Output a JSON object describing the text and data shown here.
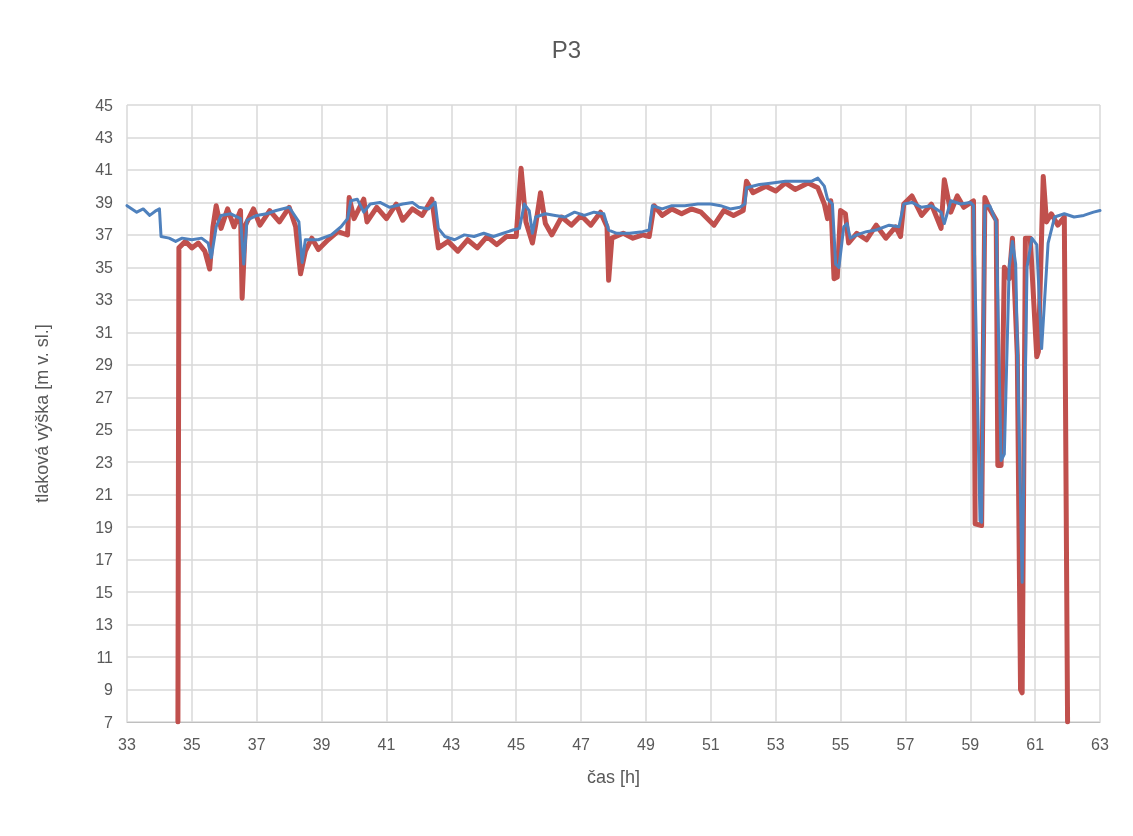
{
  "chart_data": {
    "type": "line",
    "title": "P3",
    "xlabel": "čas [h]",
    "ylabel": "tlaková výška [m v. sl.]",
    "xlim": [
      33,
      63
    ],
    "xticks": [
      33,
      35,
      37,
      39,
      41,
      43,
      45,
      47,
      49,
      51,
      53,
      55,
      57,
      59,
      61,
      63
    ],
    "ylim": [
      7,
      45
    ],
    "yticks": [
      7,
      9,
      11,
      13,
      15,
      17,
      19,
      21,
      23,
      25,
      27,
      29,
      31,
      33,
      35,
      37,
      39,
      41,
      43,
      45
    ],
    "grid": true,
    "marker": "none",
    "line_style": "solid",
    "series": [
      {
        "color": "#c0504d",
        "x": [
          34.57,
          34.6,
          34.8,
          35.0,
          35.2,
          35.4,
          35.55,
          35.65,
          35.75,
          35.9,
          36.1,
          36.3,
          36.5,
          36.55,
          36.65,
          36.9,
          37.1,
          37.4,
          37.7,
          38.0,
          38.2,
          38.35,
          38.5,
          38.7,
          38.9,
          39.2,
          39.5,
          39.8,
          39.85,
          40.0,
          40.3,
          40.4,
          40.7,
          41.0,
          41.3,
          41.5,
          41.8,
          42.1,
          42.4,
          42.6,
          42.9,
          43.2,
          43.5,
          43.8,
          44.1,
          44.4,
          44.7,
          45.0,
          45.15,
          45.3,
          45.5,
          45.6,
          45.75,
          45.9,
          46.1,
          46.4,
          46.7,
          47.0,
          47.3,
          47.6,
          47.8,
          47.85,
          47.95,
          48.3,
          48.6,
          48.9,
          49.1,
          49.25,
          49.5,
          49.8,
          50.1,
          50.4,
          50.7,
          50.9,
          51.1,
          51.4,
          51.7,
          52.0,
          52.1,
          52.3,
          52.7,
          53.0,
          53.3,
          53.6,
          54.0,
          54.3,
          54.5,
          54.6,
          54.7,
          54.8,
          54.9,
          55.0,
          55.15,
          55.25,
          55.5,
          55.8,
          56.1,
          56.4,
          56.7,
          56.85,
          56.95,
          57.2,
          57.5,
          57.8,
          58.1,
          58.2,
          58.4,
          58.6,
          58.8,
          59.1,
          59.15,
          59.35,
          59.45,
          59.6,
          59.8,
          59.85,
          59.95,
          60.05,
          60.2,
          60.3,
          60.45,
          60.55,
          60.6,
          60.7,
          60.85,
          61.05,
          61.1,
          61.25,
          61.35,
          61.5,
          61.7,
          61.9,
          62.0
        ],
        "values": [
          7,
          36.2,
          36.6,
          36.2,
          36.5,
          36.0,
          34.9,
          37.5,
          38.8,
          37.4,
          38.6,
          37.5,
          38.5,
          33.1,
          37.6,
          38.6,
          37.6,
          38.5,
          37.8,
          38.7,
          37.5,
          34.6,
          36.0,
          36.8,
          36.1,
          36.7,
          37.2,
          37.0,
          39.3,
          38.0,
          39.2,
          37.8,
          38.7,
          38.0,
          38.9,
          37.9,
          38.6,
          38.2,
          39.2,
          36.2,
          36.6,
          36.0,
          36.7,
          36.2,
          36.9,
          36.4,
          36.9,
          36.9,
          41.1,
          37.8,
          36.5,
          37.6,
          39.6,
          37.7,
          37.0,
          38.1,
          37.6,
          38.2,
          37.6,
          38.4,
          37.5,
          34.2,
          36.8,
          37.1,
          36.8,
          37.0,
          36.9,
          38.8,
          38.2,
          38.6,
          38.3,
          38.6,
          38.4,
          38.0,
          37.6,
          38.5,
          38.2,
          38.5,
          40.3,
          39.6,
          40.0,
          39.7,
          40.2,
          39.8,
          40.2,
          39.9,
          38.9,
          38.0,
          39.1,
          34.3,
          34.4,
          38.5,
          38.3,
          36.5,
          37.1,
          36.7,
          37.6,
          36.8,
          37.5,
          36.9,
          38.9,
          39.4,
          38.2,
          38.9,
          37.4,
          40.4,
          38.4,
          39.4,
          38.7,
          39.1,
          19.2,
          19.1,
          39.3,
          38.6,
          37.9,
          22.8,
          22.8,
          35.0,
          34.3,
          36.8,
          29.6,
          9.0,
          8.8,
          36.8,
          36.8,
          29.5,
          29.8,
          40.6,
          37.8,
          38.3,
          37.6,
          38.1,
          7
        ]
      },
      {
        "color": "#4f81bd",
        "x": [
          33.0,
          33.3,
          33.5,
          33.7,
          33.9,
          34.0,
          34.05,
          34.3,
          34.5,
          34.7,
          35.0,
          35.3,
          35.5,
          35.6,
          35.75,
          35.9,
          36.2,
          36.5,
          36.6,
          36.7,
          37.0,
          37.3,
          37.6,
          38.0,
          38.3,
          38.4,
          38.5,
          38.9,
          39.3,
          39.6,
          39.8,
          39.9,
          40.1,
          40.3,
          40.5,
          40.8,
          41.1,
          41.5,
          41.8,
          42.0,
          42.3,
          42.5,
          42.6,
          42.8,
          43.1,
          43.4,
          43.7,
          44.0,
          44.3,
          44.6,
          44.9,
          45.1,
          45.25,
          45.4,
          45.5,
          45.6,
          45.9,
          46.2,
          46.5,
          46.8,
          47.1,
          47.4,
          47.7,
          47.85,
          48.1,
          48.5,
          48.9,
          49.1,
          49.2,
          49.5,
          49.8,
          50.2,
          50.6,
          51.0,
          51.3,
          51.6,
          51.9,
          52.05,
          52.1,
          52.5,
          52.9,
          53.3,
          53.7,
          54.1,
          54.3,
          54.5,
          54.6,
          54.75,
          54.85,
          54.95,
          55.1,
          55.2,
          55.3,
          55.5,
          55.8,
          56.1,
          56.5,
          56.8,
          56.95,
          57.2,
          57.5,
          57.8,
          58.1,
          58.2,
          58.4,
          58.7,
          59.0,
          59.1,
          59.3,
          59.35,
          59.45,
          59.6,
          59.8,
          59.95,
          60.05,
          60.2,
          60.3,
          60.4,
          60.6,
          60.75,
          60.9,
          61.05,
          61.2,
          61.4,
          61.6,
          61.9,
          62.2,
          62.5,
          62.8,
          63.0
        ],
        "values": [
          38.8,
          38.4,
          38.6,
          38.2,
          38.5,
          38.6,
          36.9,
          36.8,
          36.6,
          36.8,
          36.7,
          36.8,
          36.5,
          35.6,
          37.5,
          38.2,
          38.3,
          38.0,
          35.2,
          37.9,
          38.2,
          38.3,
          38.5,
          38.7,
          37.8,
          35.3,
          36.7,
          36.7,
          37.0,
          37.5,
          38.0,
          39.1,
          39.2,
          38.4,
          38.9,
          39.0,
          38.7,
          38.9,
          39.0,
          38.7,
          38.6,
          39.0,
          37.4,
          36.9,
          36.7,
          37.0,
          36.9,
          37.1,
          36.9,
          37.1,
          37.3,
          37.4,
          38.9,
          38.5,
          37.1,
          38.1,
          38.3,
          38.2,
          38.1,
          38.4,
          38.2,
          38.4,
          38.3,
          37.3,
          37.1,
          37.1,
          37.2,
          37.3,
          38.8,
          38.6,
          38.8,
          38.8,
          38.9,
          38.9,
          38.8,
          38.6,
          38.7,
          38.9,
          39.9,
          40.1,
          40.2,
          40.3,
          40.3,
          40.3,
          40.5,
          40.0,
          39.2,
          38.9,
          35.2,
          35.0,
          37.5,
          37.7,
          36.8,
          37.0,
          37.2,
          37.3,
          37.6,
          37.5,
          38.9,
          39.0,
          38.7,
          38.8,
          38.4,
          37.7,
          39.1,
          38.9,
          39.0,
          38.8,
          19.4,
          19.3,
          38.8,
          38.8,
          37.8,
          23.1,
          23.5,
          35.0,
          36.6,
          35.2,
          15.6,
          35.0,
          36.8,
          36.4,
          30.0,
          36.5,
          38.1,
          38.3,
          38.1,
          38.2,
          38.4,
          38.5
        ]
      }
    ]
  }
}
